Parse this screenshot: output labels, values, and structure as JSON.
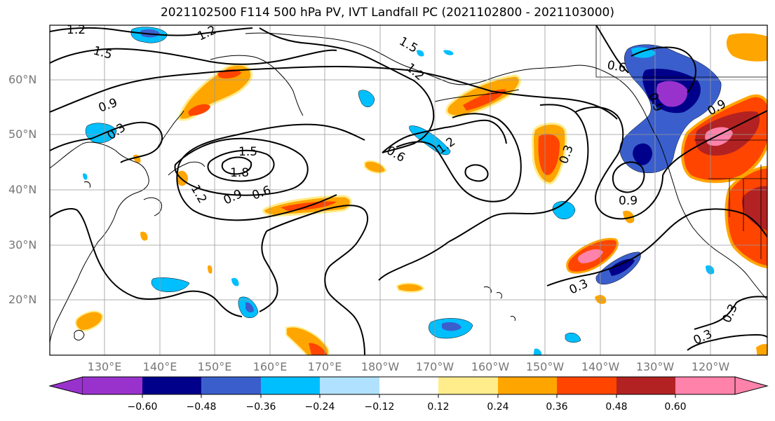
{
  "title": "2021102500 F114 500 hPa PV, IVT Landfall PC (2021102800 - 2021103000)",
  "lat_labels": [
    "60°N",
    "50°N",
    "40°N",
    "30°N",
    "20°N"
  ],
  "lon_labels": [
    "130°E",
    "140°E",
    "150°E",
    "160°E",
    "170°E",
    "180°W",
    "170°W",
    "160°W",
    "150°W",
    "140°W",
    "130°W",
    "120°W"
  ],
  "colorbar": {
    "colors": [
      "#9932cc",
      "#00008b",
      "#3a5fcd",
      "#00bfff",
      "#b0e2ff",
      "#ffffff",
      "#ffec8b",
      "#ffa500",
      "#ff4500",
      "#b22222",
      "#ff82ab"
    ],
    "ticks": [
      "−0.60",
      "−0.48",
      "−0.36",
      "−0.24",
      "−0.12",
      "0.12",
      "0.24",
      "0.36",
      "0.48",
      "0.60"
    ]
  },
  "contour_labels": [
    "1.2",
    "1.2",
    "1.5",
    "1.5",
    "1.2",
    "0.9",
    "0.3",
    "1.5",
    "1.8",
    "1.2",
    "0.9",
    "0.6",
    "0.6",
    "1.2",
    "0.3",
    "0.6",
    "0.9",
    "0.9",
    "0.9",
    "0.3",
    "0.3",
    "0.3"
  ]
}
